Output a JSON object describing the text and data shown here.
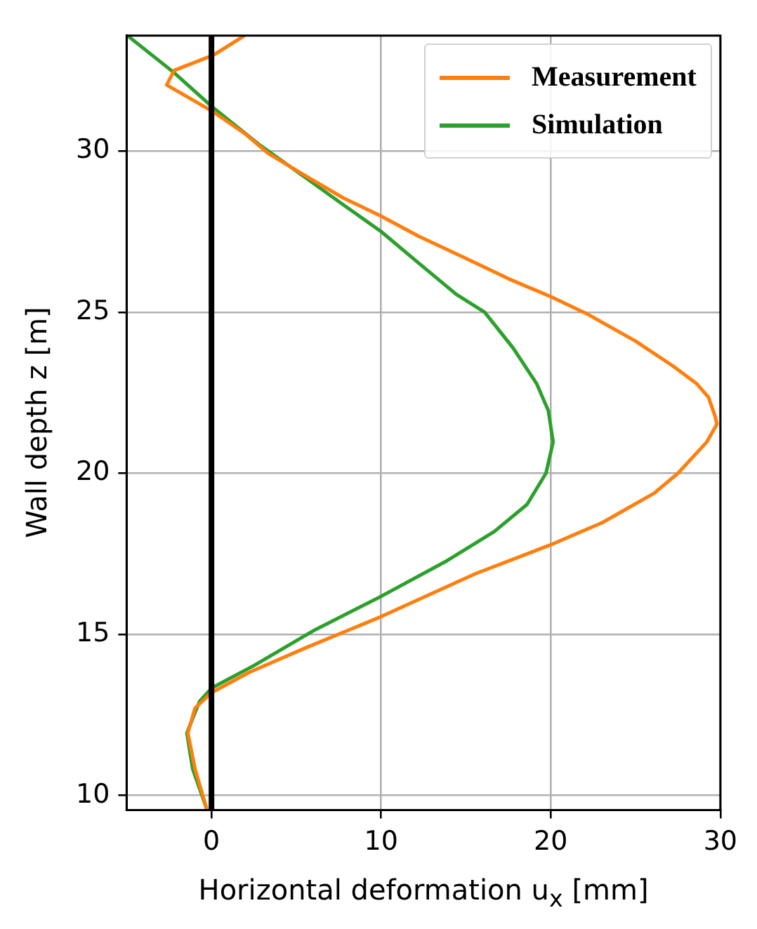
{
  "chart_data": {
    "type": "line",
    "xlabel": "Horizontal deformation u$_{x}$ [mm]",
    "ylabel": "Wall depth z [m]",
    "xlim": [
      -5,
      30
    ],
    "xticks": [
      0,
      10,
      20,
      30
    ],
    "ylim": [
      9.55,
      33.58
    ],
    "yticks": [
      10,
      15,
      20,
      25,
      30
    ],
    "grid": true,
    "legend": "top right",
    "ref_lines": [
      {
        "axis": "x",
        "value": 0,
        "color": "#000000"
      }
    ],
    "series": [
      {
        "name": "Measurement",
        "color": "#ff7f0e",
        "x": [
          1.94,
          0.13,
          -2.2,
          -2.64,
          0,
          1.94,
          3.33,
          5.55,
          7.78,
          10,
          12.2,
          15,
          17.5,
          20,
          22.2,
          25,
          27.2,
          28.6,
          29.3,
          29.67,
          29.8,
          29.2,
          27.5,
          26.1,
          23.05,
          20,
          15.55,
          10,
          5.55,
          2.22,
          0,
          -0.97,
          -1.39,
          -0.97,
          -0.28
        ],
        "values": [
          33.58,
          32.98,
          32.5,
          32.05,
          31.25,
          30.55,
          29.93,
          29.23,
          28.54,
          27.98,
          27.36,
          26.67,
          26.04,
          25.48,
          24.93,
          24.1,
          23.33,
          22.78,
          22.36,
          21.8,
          21.53,
          20.97,
          20.0,
          19.38,
          18.47,
          17.78,
          16.88,
          15.55,
          14.58,
          13.82,
          13.19,
          12.71,
          11.94,
          10.83,
          9.58
        ]
      },
      {
        "name": "Simulation",
        "color": "#2ca02c",
        "x": [
          -4.95,
          -2.2,
          0,
          2.78,
          5.55,
          7.78,
          10,
          12.2,
          14.44,
          16.1,
          17.78,
          19.17,
          19.86,
          20.14,
          19.72,
          18.6,
          16.67,
          13.9,
          10,
          6.1,
          2.5,
          0,
          -0.7,
          -1.45,
          -1.11,
          -0.28
        ],
        "values": [
          33.58,
          32.43,
          31.39,
          30.21,
          29.17,
          28.33,
          27.5,
          26.53,
          25.55,
          25.0,
          23.89,
          22.78,
          21.94,
          20.97,
          20.0,
          19.03,
          18.19,
          17.29,
          16.18,
          15.14,
          14.03,
          13.33,
          12.92,
          11.94,
          10.83,
          9.58
        ]
      }
    ]
  }
}
